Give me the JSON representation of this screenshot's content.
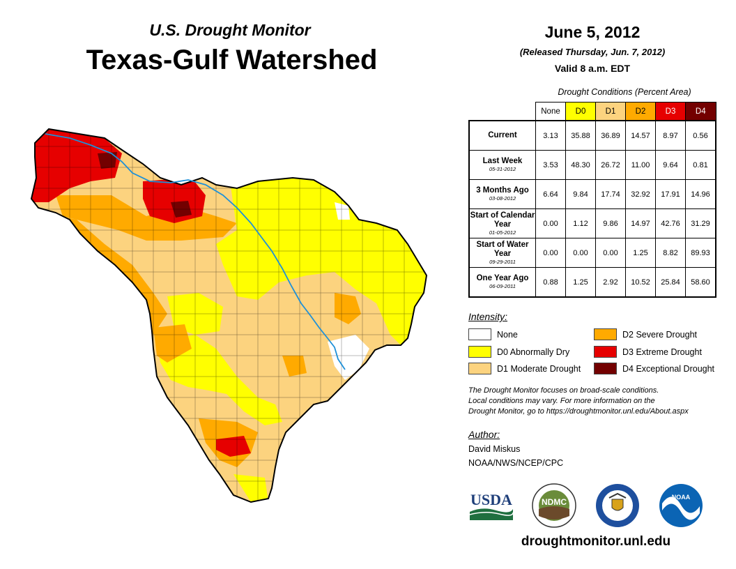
{
  "header": {
    "supertitle": "U.S. Drought Monitor",
    "title": "Texas-Gulf Watershed",
    "date": "June 5, 2012",
    "released": "(Released Thursday, Jun. 7, 2012)",
    "valid": "Valid 8 a.m. EDT"
  },
  "conditions_table": {
    "caption": "Drought Conditions (Percent Area)",
    "columns": [
      {
        "label": "None",
        "color": "#ffffff"
      },
      {
        "label": "D0",
        "color": "#ffff00"
      },
      {
        "label": "D1",
        "color": "#fcd37f"
      },
      {
        "label": "D2",
        "color": "#ffaa00"
      },
      {
        "label": "D3",
        "color": "#e60000"
      },
      {
        "label": "D4",
        "color": "#730000"
      }
    ],
    "rows": [
      {
        "label": "Current",
        "date": "",
        "values": [
          "3.13",
          "35.88",
          "36.89",
          "14.57",
          "8.97",
          "0.56"
        ]
      },
      {
        "label": "Last Week",
        "date": "05-31-2012",
        "values": [
          "3.53",
          "48.30",
          "26.72",
          "11.00",
          "9.64",
          "0.81"
        ]
      },
      {
        "label": "3 Months Ago",
        "date": "03-08-2012",
        "values": [
          "6.64",
          "9.84",
          "17.74",
          "32.92",
          "17.91",
          "14.96"
        ]
      },
      {
        "label": "Start of Calendar Year",
        "date": "01-05-2012",
        "values": [
          "0.00",
          "1.12",
          "9.86",
          "14.97",
          "42.76",
          "31.29"
        ]
      },
      {
        "label": "Start of Water Year",
        "date": "09-29-2011",
        "values": [
          "0.00",
          "0.00",
          "0.00",
          "1.25",
          "8.82",
          "89.93"
        ]
      },
      {
        "label": "One Year Ago",
        "date": "06-09-2011",
        "values": [
          "0.88",
          "1.25",
          "2.92",
          "10.52",
          "25.84",
          "58.60"
        ]
      }
    ]
  },
  "legend": {
    "heading": "Intensity:",
    "items": [
      {
        "label": "None",
        "color": "#ffffff"
      },
      {
        "label": "D0 Abnormally Dry",
        "color": "#ffff00"
      },
      {
        "label": "D1 Moderate Drought",
        "color": "#fcd37f"
      },
      {
        "label": "D2 Severe Drought",
        "color": "#ffaa00"
      },
      {
        "label": "D3 Extreme Drought",
        "color": "#e60000"
      },
      {
        "label": "D4 Exceptional Drought",
        "color": "#730000"
      }
    ]
  },
  "note": {
    "line1": "The Drought Monitor focuses on broad-scale conditions.",
    "line2": "Local conditions may vary. For more information on the",
    "line3": "Drought Monitor, go to https://droughtmonitor.unl.edu/About.aspx"
  },
  "author": {
    "heading": "Author:",
    "name": "David Miskus",
    "org": "NOAA/NWS/NCEP/CPC"
  },
  "logos": {
    "usda": "USDA",
    "ndmc": "NDMC",
    "noaa": "NOAA"
  },
  "footer": {
    "website": "droughtmonitor.unl.edu"
  },
  "map": {
    "river_color": "#1e90d8"
  }
}
